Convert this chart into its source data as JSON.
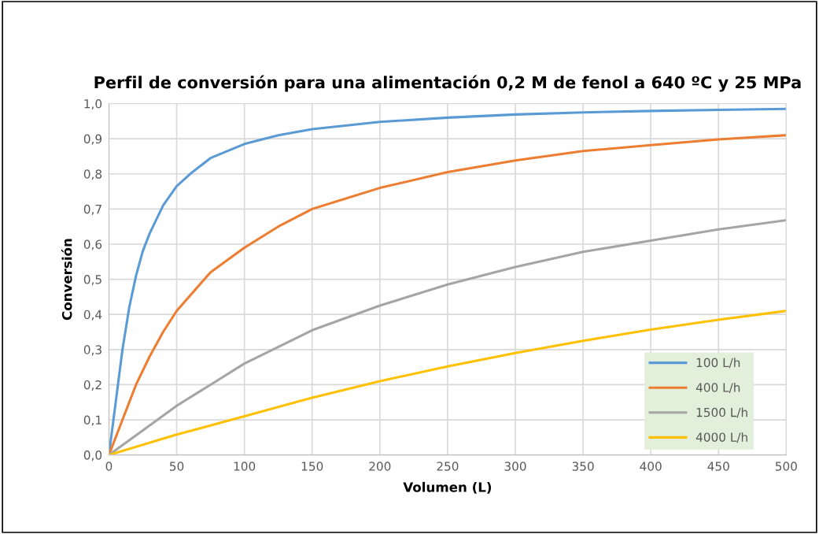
{
  "chart_data": {
    "type": "line",
    "title": "Perfil de conversión para una alimentación 0,2 M de fenol a 640 ºC y 25 MPa",
    "xlabel": "Volumen (L)",
    "ylabel": "Conversión",
    "series": [
      {
        "name": "100 L/h",
        "color": "#5b9bd5",
        "x": [
          0,
          5,
          10,
          15,
          20,
          25,
          30,
          40,
          50,
          60,
          75,
          100,
          125,
          150,
          200,
          250,
          300,
          350,
          400,
          450,
          500
        ],
        "values": [
          0,
          0.15,
          0.3,
          0.42,
          0.51,
          0.58,
          0.63,
          0.71,
          0.765,
          0.8,
          0.845,
          0.885,
          0.91,
          0.927,
          0.948,
          0.96,
          0.969,
          0.975,
          0.979,
          0.982,
          0.985
        ]
      },
      {
        "name": "400 L/h",
        "color": "#ed7d31",
        "x": [
          0,
          10,
          20,
          30,
          40,
          50,
          75,
          100,
          125,
          150,
          200,
          250,
          300,
          350,
          400,
          450,
          500
        ],
        "values": [
          0,
          0.1,
          0.2,
          0.28,
          0.35,
          0.41,
          0.52,
          0.59,
          0.65,
          0.7,
          0.76,
          0.805,
          0.838,
          0.865,
          0.882,
          0.898,
          0.91
        ]
      },
      {
        "name": "1500 L/h",
        "color": "#a5a5a5",
        "x": [
          0,
          25,
          50,
          75,
          100,
          150,
          200,
          250,
          300,
          350,
          400,
          450,
          500
        ],
        "values": [
          0,
          0.07,
          0.14,
          0.2,
          0.26,
          0.355,
          0.425,
          0.485,
          0.535,
          0.578,
          0.61,
          0.642,
          0.668
        ]
      },
      {
        "name": "4000 L/h",
        "color": "#ffc000",
        "x": [
          0,
          50,
          100,
          150,
          200,
          250,
          300,
          350,
          400,
          450,
          500
        ],
        "values": [
          0,
          0.058,
          0.11,
          0.163,
          0.21,
          0.252,
          0.29,
          0.325,
          0.357,
          0.385,
          0.41
        ]
      }
    ],
    "xlim": [
      0,
      500
    ],
    "xticks": [
      0,
      50,
      100,
      150,
      200,
      250,
      300,
      350,
      400,
      450,
      500
    ],
    "ylim": [
      0,
      1
    ],
    "yticks": [
      {
        "value": 0,
        "label": "0,0"
      },
      {
        "value": 0.1,
        "label": "0,1"
      },
      {
        "value": 0.2,
        "label": "0,2"
      },
      {
        "value": 0.3,
        "label": "0,3"
      },
      {
        "value": 0.4,
        "label": "0,4"
      },
      {
        "value": 0.5,
        "label": "0,5"
      },
      {
        "value": 0.6,
        "label": "0,6"
      },
      {
        "value": 0.7,
        "label": "0,7"
      },
      {
        "value": 0.8,
        "label": "0,8"
      },
      {
        "value": 0.9,
        "label": "0,9"
      },
      {
        "value": 1,
        "label": "1,0"
      }
    ],
    "grid": true,
    "legend": "bottom right",
    "marker": "none",
    "line_style": "solid"
  }
}
